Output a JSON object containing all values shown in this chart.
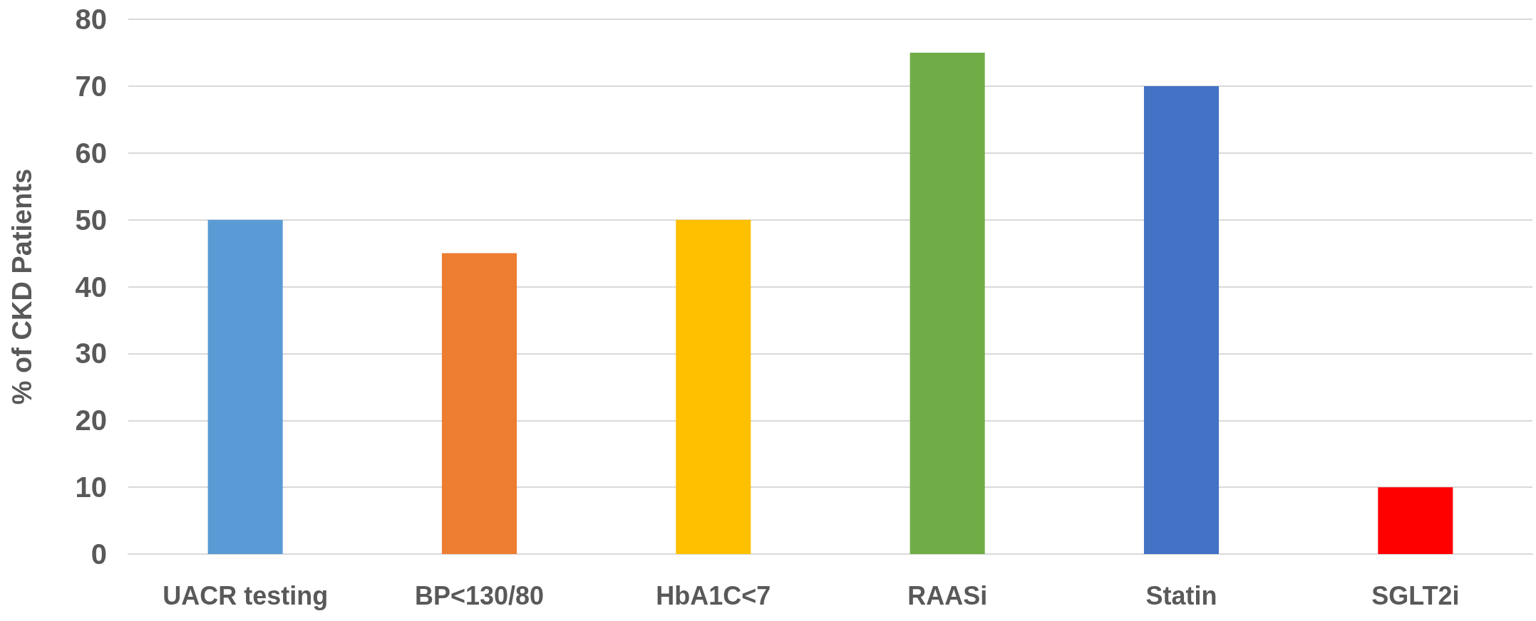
{
  "chart_data": {
    "type": "bar",
    "ylabel": "% of CKD Patients",
    "categories": [
      "UACR testing",
      "BP<130/80",
      "HbA1C<7",
      "RAASi",
      "Statin",
      "SGLT2i"
    ],
    "values": [
      50,
      45,
      50,
      75,
      70,
      10
    ],
    "colors": [
      "#5b9bd5",
      "#ed7d31",
      "#ffc000",
      "#70ad47",
      "#4472c4",
      "#ff0000"
    ],
    "ylim": [
      0,
      80
    ],
    "yticks": [
      0,
      10,
      20,
      30,
      40,
      50,
      60,
      70,
      80
    ],
    "grid": "y"
  }
}
